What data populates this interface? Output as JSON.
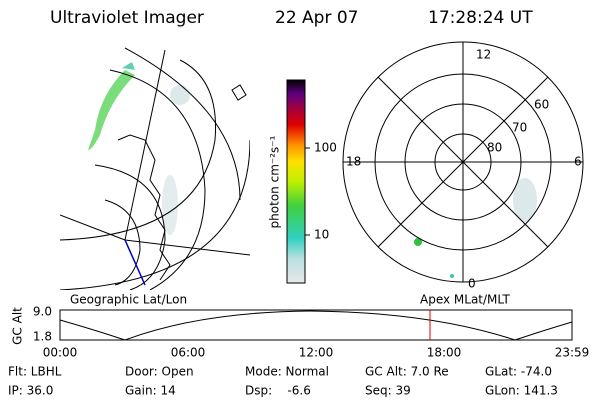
{
  "header": {
    "title": "Ultraviolet Imager",
    "date": "22 Apr 07",
    "time": "17:28:24 UT"
  },
  "colorbar": {
    "label": "photon cm⁻²s⁻¹",
    "ticks": [
      "100",
      "10"
    ]
  },
  "polar": {
    "mlt_labels": [
      "12",
      "18",
      "6",
      "0"
    ],
    "lat_labels": [
      "60",
      "70",
      "80"
    ]
  },
  "altitude_plot": {
    "left_label": "Geographic Lat/Lon",
    "right_label": "Apex MLat/MLT",
    "axis_label": "GC Alt",
    "y_labels": [
      "9.0",
      "1.8"
    ],
    "time_labels": [
      "00:00",
      "06:00",
      "12:00",
      "18:00",
      "23:59"
    ]
  },
  "status": {
    "fields": [
      "Flt: LBHL",
      "IP: 36.0",
      "Door: Open",
      "Gain: 14",
      "Mode: Normal",
      "Dsp:    -6.6",
      "GC Alt: 7.0 Re",
      "Seq: 39",
      "GLat: -74.0",
      "GLon: 141.3"
    ]
  }
}
